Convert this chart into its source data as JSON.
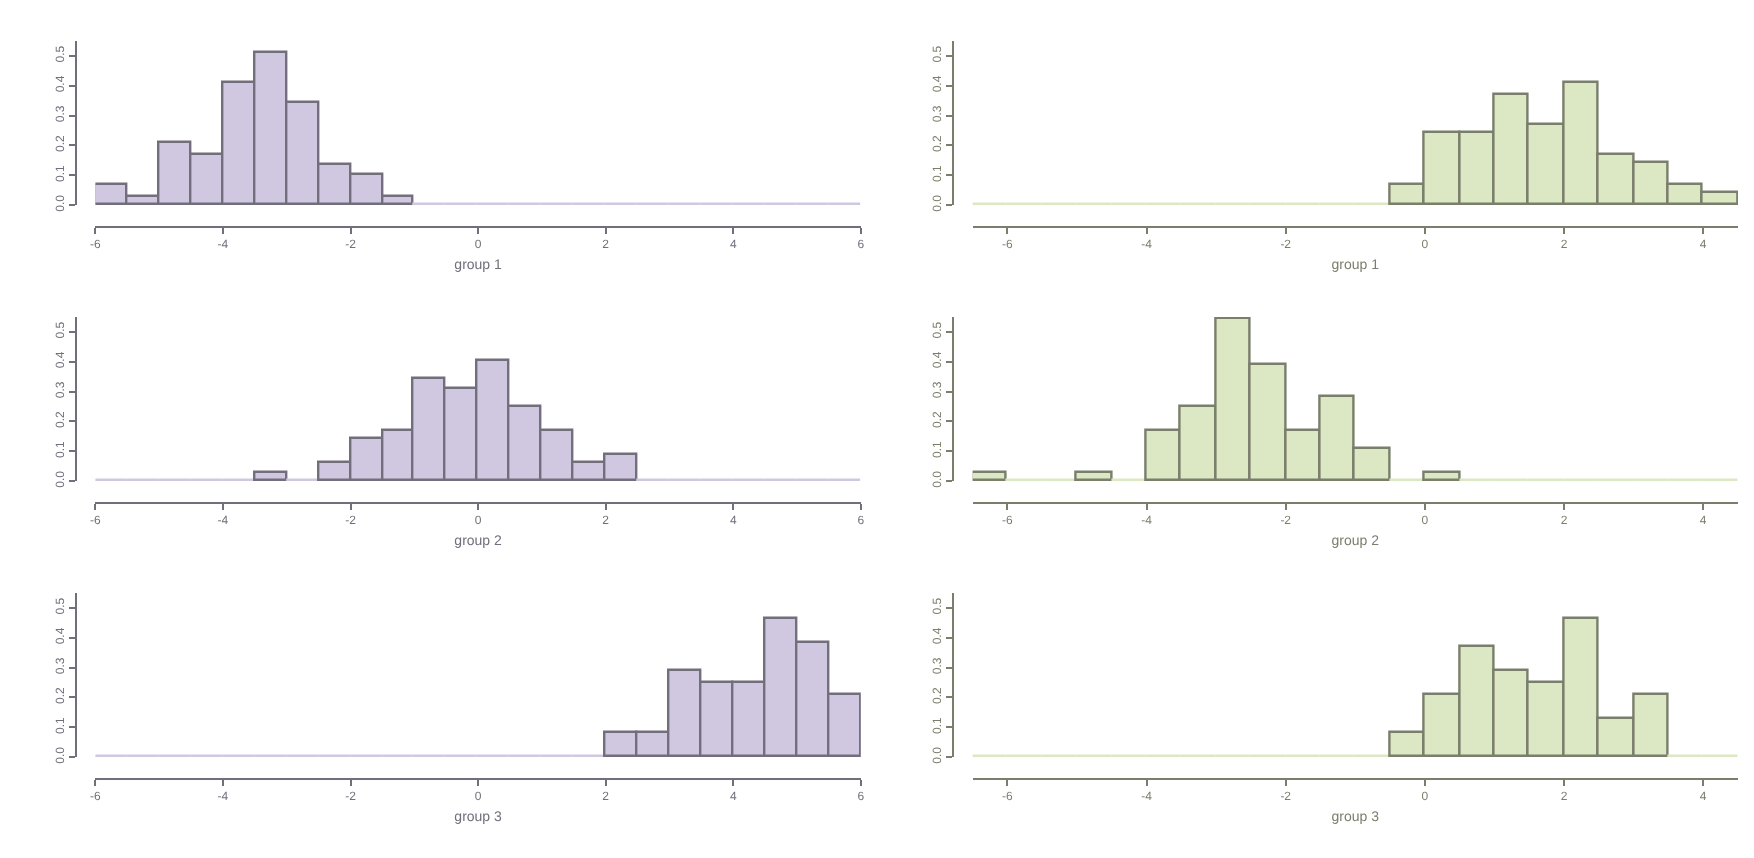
{
  "chart_data": [
    {
      "type": "histogram",
      "xlabel": "group 1",
      "color": "#d0c8e0",
      "bins": [
        -6,
        -5.5,
        -5,
        -4.5,
        -4,
        -3.5,
        -3,
        -2.5,
        -2,
        -1.5,
        -1,
        -0.5,
        0,
        0.5,
        1,
        1.5,
        2,
        2.5,
        3,
        3.5,
        4,
        4.5,
        5,
        5.5,
        6
      ],
      "values": [
        0.07,
        0.03,
        0.21,
        0.17,
        0.41,
        0.51,
        0.34,
        0.135,
        0.1,
        0.03,
        0,
        0,
        0,
        0,
        0,
        0,
        0,
        0,
        0,
        0,
        0,
        0,
        0,
        0
      ],
      "xlim": [
        -6,
        6
      ],
      "xticks": [
        -6,
        -4,
        -2,
        0,
        2,
        4,
        6
      ],
      "ylim": [
        0,
        0.55
      ],
      "yticks": [
        {
          "value": 0,
          "label": "0.0"
        },
        {
          "value": 0.1,
          "label": "0.1"
        },
        {
          "value": 0.2,
          "label": "0.2"
        },
        {
          "value": 0.3,
          "label": "0.3"
        },
        {
          "value": 0.4,
          "label": "0.4"
        },
        {
          "value": 0.5,
          "label": "0.5"
        }
      ]
    },
    {
      "type": "histogram",
      "xlabel": "group 1",
      "color": "#dce7c4",
      "bins": [
        -6.5,
        -6,
        -5.5,
        -5,
        -4.5,
        -4,
        -3.5,
        -3,
        -2.5,
        -2,
        -1.5,
        -1,
        -0.5,
        0,
        0.5,
        1,
        1.5,
        2,
        2.5,
        3,
        3.5,
        4,
        4.5
      ],
      "values": [
        0,
        0,
        0,
        0,
        0,
        0,
        0,
        0,
        0,
        0,
        0,
        0,
        0.07,
        0.24,
        0.24,
        0.37,
        0.27,
        0.41,
        0.17,
        0.14,
        0.07,
        0.04
      ],
      "xlim": [
        -6.5,
        4.5
      ],
      "xticks": [
        -6,
        -4,
        -2,
        0,
        2,
        4
      ],
      "ylim": [
        0,
        0.55
      ],
      "yticks": [
        {
          "value": 0,
          "label": "0.0"
        },
        {
          "value": 0.1,
          "label": "0.1"
        },
        {
          "value": 0.2,
          "label": "0.2"
        },
        {
          "value": 0.3,
          "label": "0.3"
        },
        {
          "value": 0.4,
          "label": "0.4"
        },
        {
          "value": 0.5,
          "label": "0.5"
        }
      ]
    },
    {
      "type": "histogram",
      "xlabel": "group 2",
      "color": "#d0c8e0",
      "bins": [
        -6,
        -5.5,
        -5,
        -4.5,
        -4,
        -3.5,
        -3,
        -2.5,
        -2,
        -1.5,
        -1,
        -0.5,
        0,
        0.5,
        1,
        1.5,
        2,
        2.5,
        3,
        3.5,
        4,
        4.5,
        5,
        5.5,
        6
      ],
      "values": [
        0,
        0,
        0,
        0,
        0,
        0.03,
        0,
        0.06,
        0.14,
        0.17,
        0.34,
        0.31,
        0.4,
        0.25,
        0.17,
        0.06,
        0.085,
        0,
        0,
        0,
        0,
        0,
        0,
        0
      ],
      "xlim": [
        -6,
        6
      ],
      "xticks": [
        -6,
        -4,
        -2,
        0,
        2,
        4,
        6
      ],
      "ylim": [
        0,
        0.55
      ],
      "yticks": [
        {
          "value": 0,
          "label": "0.0"
        },
        {
          "value": 0.1,
          "label": "0.1"
        },
        {
          "value": 0.2,
          "label": "0.2"
        },
        {
          "value": 0.3,
          "label": "0.3"
        },
        {
          "value": 0.4,
          "label": "0.4"
        },
        {
          "value": 0.5,
          "label": "0.5"
        }
      ]
    },
    {
      "type": "histogram",
      "xlabel": "group 2",
      "color": "#dce7c4",
      "bins": [
        -6.5,
        -6,
        -5.5,
        -5,
        -4.5,
        -4,
        -3.5,
        -3,
        -2.5,
        -2,
        -1.5,
        -1,
        -0.5,
        0,
        0.5,
        1,
        1.5,
        2,
        2.5,
        3,
        3.5,
        4,
        4.5
      ],
      "values": [
        0.03,
        0,
        0,
        0.03,
        0,
        0.17,
        0.25,
        0.54,
        0.39,
        0.17,
        0.28,
        0.11,
        0,
        0.03,
        0,
        0,
        0,
        0,
        0,
        0,
        0,
        0
      ],
      "xlim": [
        -6.5,
        4.5
      ],
      "xticks": [
        -6,
        -4,
        -2,
        0,
        2,
        4
      ],
      "ylim": [
        0,
        0.55
      ],
      "yticks": [
        {
          "value": 0,
          "label": "0.0"
        },
        {
          "value": 0.1,
          "label": "0.1"
        },
        {
          "value": 0.2,
          "label": "0.2"
        },
        {
          "value": 0.3,
          "label": "0.3"
        },
        {
          "value": 0.4,
          "label": "0.4"
        },
        {
          "value": 0.5,
          "label": "0.5"
        }
      ]
    },
    {
      "type": "histogram",
      "xlabel": "group 3",
      "color": "#d0c8e0",
      "bins": [
        -6,
        -5.5,
        -5,
        -4.5,
        -4,
        -3.5,
        -3,
        -2.5,
        -2,
        -1.5,
        -1,
        -0.5,
        0,
        0.5,
        1,
        1.5,
        2,
        2.5,
        3,
        3.5,
        4,
        4.5,
        5,
        5.5,
        6
      ],
      "values": [
        0,
        0,
        0,
        0,
        0,
        0,
        0,
        0,
        0,
        0,
        0,
        0,
        0,
        0,
        0,
        0,
        0.08,
        0.08,
        0.29,
        0.25,
        0.25,
        0.46,
        0.38,
        0.21
      ],
      "xlim": [
        -6,
        6
      ],
      "xticks": [
        -6,
        -4,
        -2,
        0,
        2,
        4,
        6
      ],
      "ylim": [
        0,
        0.55
      ],
      "yticks": [
        {
          "value": 0,
          "label": "0.0"
        },
        {
          "value": 0.1,
          "label": "0.1"
        },
        {
          "value": 0.2,
          "label": "0.2"
        },
        {
          "value": 0.3,
          "label": "0.3"
        },
        {
          "value": 0.4,
          "label": "0.4"
        },
        {
          "value": 0.5,
          "label": "0.5"
        }
      ]
    },
    {
      "type": "histogram",
      "xlabel": "group 3",
      "color": "#dce7c4",
      "bins": [
        -6.5,
        -6,
        -5.5,
        -5,
        -4.5,
        -4,
        -3.5,
        -3,
        -2.5,
        -2,
        -1.5,
        -1,
        -0.5,
        0,
        0.5,
        1,
        1.5,
        2,
        2.5,
        3,
        3.5,
        4,
        4.5
      ],
      "values": [
        0,
        0,
        0,
        0,
        0,
        0,
        0,
        0,
        0,
        0,
        0,
        0,
        0.08,
        0.21,
        0.37,
        0.29,
        0.25,
        0.46,
        0.13,
        0.21,
        0,
        0
      ],
      "xlim": [
        -6.5,
        4.5
      ],
      "xticks": [
        -6,
        -4,
        -2,
        0,
        2,
        4
      ],
      "ylim": [
        0,
        0.55
      ],
      "yticks": [
        {
          "value": 0,
          "label": "0.0"
        },
        {
          "value": 0.1,
          "label": "0.1"
        },
        {
          "value": 0.2,
          "label": "0.2"
        },
        {
          "value": 0.3,
          "label": "0.3"
        },
        {
          "value": 0.4,
          "label": "0.4"
        },
        {
          "value": 0.5,
          "label": "0.5"
        }
      ]
    }
  ]
}
